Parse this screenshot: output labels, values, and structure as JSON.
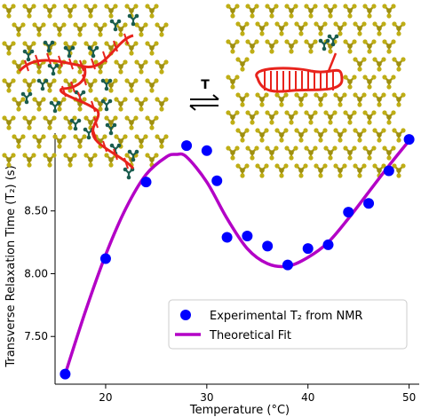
{
  "chart_data": {
    "type": "scatter",
    "xlabel": "Temperature (°C)",
    "ylabel": "Transverse Relaxation Time (T₂) (s)",
    "xlim": [
      15,
      51
    ],
    "ylim": [
      7.12,
      9.12
    ],
    "x_ticks": [
      "20",
      "30",
      "40",
      "50"
    ],
    "y_ticks": [
      "7.50",
      "8.00",
      "8.50"
    ],
    "series": [
      {
        "name": "Experimental T₂ from NMR",
        "kind": "points",
        "color": "#0000ff",
        "x": [
          16,
          20,
          24,
          28,
          30,
          31,
          32,
          34,
          36,
          38,
          40,
          42,
          44,
          46,
          48,
          50
        ],
        "y": [
          7.2,
          8.12,
          8.73,
          9.02,
          8.98,
          8.74,
          8.29,
          8.3,
          8.22,
          8.07,
          8.2,
          8.23,
          8.49,
          8.56,
          8.82,
          9.07
        ]
      },
      {
        "name": "Theoretical Fit",
        "kind": "line",
        "color": "#b300c6",
        "x": [
          16,
          18,
          20,
          22,
          24,
          26,
          27,
          28,
          30,
          32,
          34,
          36,
          38,
          40,
          42,
          44,
          46,
          48,
          50
        ],
        "y": [
          7.2,
          7.7,
          8.15,
          8.52,
          8.79,
          8.93,
          8.95,
          8.93,
          8.73,
          8.44,
          8.2,
          8.08,
          8.06,
          8.13,
          8.25,
          8.44,
          8.65,
          8.86,
          9.06
        ]
      }
    ],
    "legend": {
      "placement": "lower-right",
      "entries": [
        "Experimental T₂ from NMR",
        "Theoretical Fit"
      ]
    },
    "grid": false
  },
  "inset": {
    "arrow_label": "T",
    "colors": {
      "solvent": "#b5a615",
      "polymer_backbone": "#e8231c",
      "side_groups": "#1a5c4e"
    }
  }
}
